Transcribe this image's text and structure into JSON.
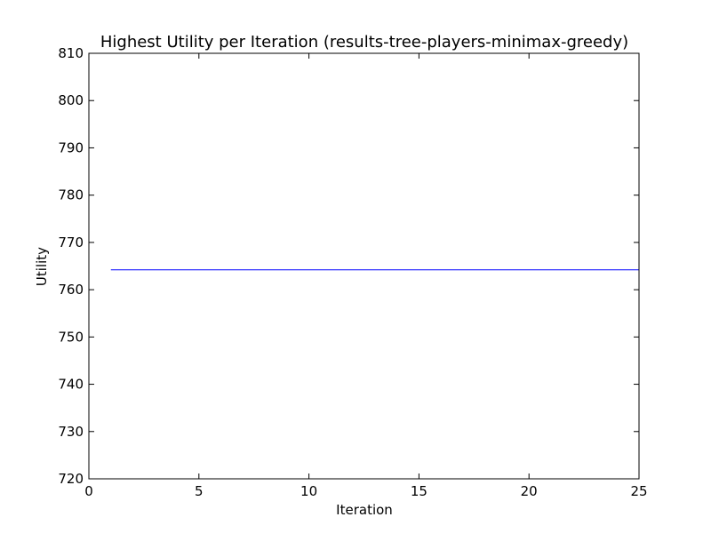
{
  "chart_data": {
    "type": "line",
    "title": "Highest Utility per Iteration (results-tree-players-minimax-greedy)",
    "xlabel": "Iteration",
    "ylabel": "Utility",
    "xlim": [
      0,
      25
    ],
    "ylim": [
      720,
      810
    ],
    "xticks": [
      0,
      5,
      10,
      15,
      20,
      25
    ],
    "yticks": [
      720,
      730,
      740,
      750,
      760,
      770,
      780,
      790,
      800,
      810
    ],
    "grid": false,
    "series": [
      {
        "color": "#0000ff",
        "x": [
          1,
          2,
          3,
          4,
          5,
          6,
          7,
          8,
          9,
          10,
          11,
          12,
          13,
          14,
          15,
          16,
          17,
          18,
          19,
          20,
          21,
          22,
          23,
          24,
          25
        ],
        "values": [
          764.2,
          764.2,
          764.2,
          764.2,
          764.2,
          764.2,
          764.2,
          764.2,
          764.2,
          764.2,
          764.2,
          764.2,
          764.2,
          764.2,
          764.2,
          764.2,
          764.2,
          764.2,
          764.2,
          764.2,
          764.2,
          764.2,
          764.2,
          764.2,
          764.2
        ]
      }
    ]
  }
}
